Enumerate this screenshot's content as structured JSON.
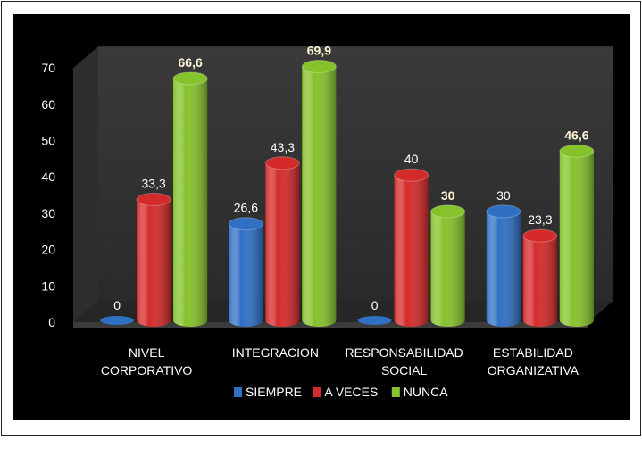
{
  "chart_data": {
    "type": "bar",
    "categories": [
      [
        "NIVEL",
        "CORPORATIVO"
      ],
      [
        "INTEGRACION"
      ],
      [
        "RESPONSABILIDAD",
        "SOCIAL"
      ],
      [
        "ESTABILIDAD",
        "ORGANIZATIVA"
      ]
    ],
    "series": [
      {
        "name": "SIEMPRE",
        "color": "#2f6fc4",
        "values": [
          0,
          26.6,
          0,
          30
        ],
        "labels": [
          "0",
          "26,6",
          "0",
          "30"
        ]
      },
      {
        "name": "A VECES",
        "color": "#d42a2a",
        "values": [
          33.3,
          43.3,
          40,
          23.3
        ],
        "labels": [
          "33,3",
          "43,3",
          "40",
          "23,3"
        ]
      },
      {
        "name": "NUNCA",
        "color": "#86c22b",
        "values": [
          66.6,
          69.9,
          30,
          46.6
        ],
        "labels": [
          "66,6",
          "69,9",
          "30",
          "46,6"
        ]
      }
    ],
    "yticks": [
      "0",
      "10",
      "20",
      "30",
      "40",
      "50",
      "60",
      "70"
    ],
    "ylim": [
      0,
      70
    ],
    "grid": false,
    "legend": "bottom",
    "title": "",
    "xlabel": "",
    "ylabel": "",
    "style": "3d-cylinder"
  }
}
